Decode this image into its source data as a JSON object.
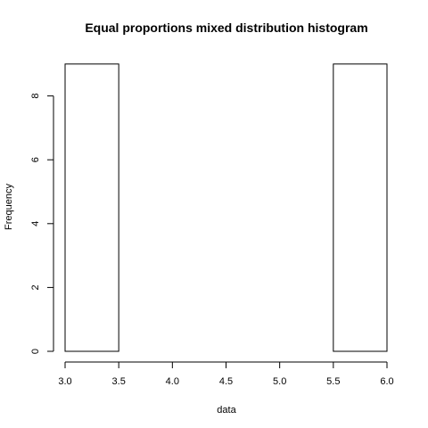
{
  "chart_data": {
    "type": "bar",
    "title": "Equal proportions mixed distribution histogram",
    "xlabel": "data",
    "ylabel": "Frequency",
    "xlim": [
      3.0,
      6.0
    ],
    "ylim": [
      0,
      9
    ],
    "x_ticks": [
      "3.0",
      "3.5",
      "4.0",
      "4.5",
      "5.0",
      "5.5",
      "6.0"
    ],
    "y_ticks": [
      "0",
      "2",
      "4",
      "6",
      "8"
    ],
    "bins": [
      {
        "start": 3.0,
        "end": 3.5,
        "count": 9
      },
      {
        "start": 3.5,
        "end": 4.0,
        "count": 0
      },
      {
        "start": 4.0,
        "end": 4.5,
        "count": 0
      },
      {
        "start": 4.5,
        "end": 5.0,
        "count": 0
      },
      {
        "start": 5.0,
        "end": 5.5,
        "count": 0
      },
      {
        "start": 5.5,
        "end": 6.0,
        "count": 9
      }
    ],
    "grid": false
  }
}
